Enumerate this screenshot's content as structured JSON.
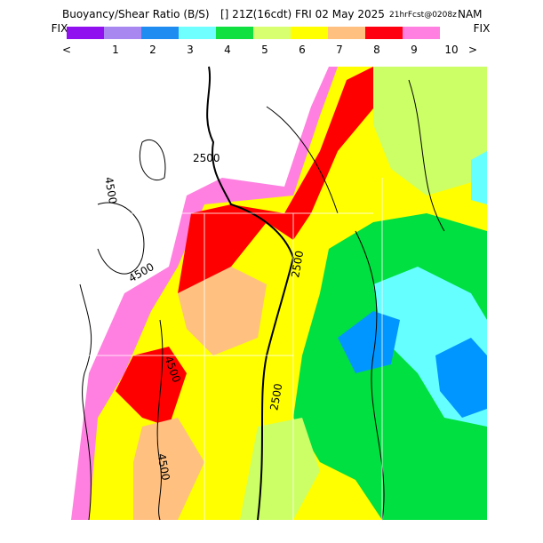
{
  "header": {
    "title": "Buoyancy/Shear Ratio (B/S)",
    "time": "[] 21Z(16cdt) FRI 02 May 2025",
    "forecast": "21hrFcst@0208z",
    "model": "NAM"
  },
  "legend": {
    "left": "FIX",
    "right": "FIX",
    "prev": "<",
    "next": ">",
    "labels": [
      "1",
      "2",
      "3",
      "4",
      "5",
      "6",
      "7",
      "8",
      "9",
      "10"
    ],
    "colors": [
      "#9010f0",
      "#a888f0",
      "#1e8cf0",
      "#70ffff",
      "#10e040",
      "#d8ff70",
      "#ffff00",
      "#ffc080",
      "#ff0010",
      "#ff80e0"
    ]
  },
  "map": {
    "contour_labels": [
      "2500",
      "2500",
      "2500",
      "4500",
      "4500",
      "4500",
      "4500"
    ]
  }
}
